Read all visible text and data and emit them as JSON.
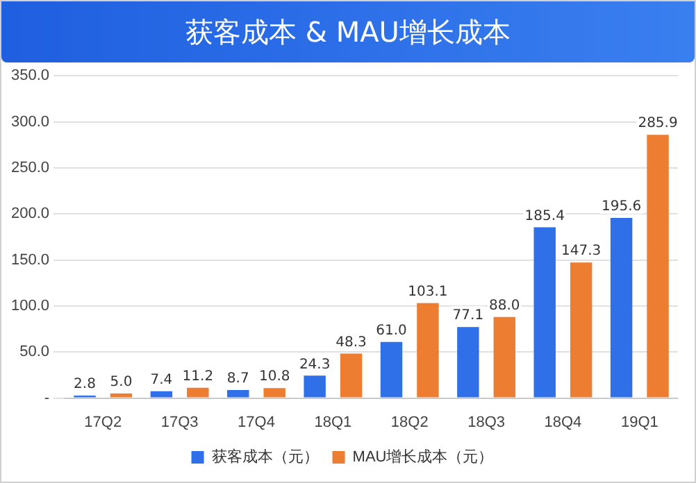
{
  "chart_data": {
    "type": "bar",
    "title": "获客成本 & MAU增长成本",
    "categories": [
      "17Q2",
      "17Q3",
      "17Q4",
      "18Q1",
      "18Q2",
      "18Q3",
      "18Q4",
      "19Q1"
    ],
    "series": [
      {
        "name": "获客成本（元）",
        "color": "#2f6fe8",
        "values": [
          2.8,
          7.4,
          8.7,
          24.3,
          61.0,
          77.1,
          185.4,
          195.6
        ],
        "value_labels": [
          "2.8",
          "7.4",
          "8.7",
          "24.3",
          "61.0",
          "77.1",
          "185.4",
          "195.6"
        ]
      },
      {
        "name": "MAU增长成本（元）",
        "color": "#ed7d31",
        "values": [
          5.0,
          11.2,
          10.8,
          48.3,
          103.1,
          88.0,
          147.3,
          285.9
        ],
        "value_labels": [
          "5.0",
          "11.2",
          "10.8",
          "48.3",
          "103.1",
          "88.0",
          "147.3",
          "285.9"
        ]
      }
    ],
    "ylim": [
      0,
      350
    ],
    "yticks": [
      {
        "value": 0,
        "label": "-"
      },
      {
        "value": 50,
        "label": "50.0"
      },
      {
        "value": 100,
        "label": "100.0"
      },
      {
        "value": 150,
        "label": "150.0"
      },
      {
        "value": 200,
        "label": "200.0"
      },
      {
        "value": 250,
        "label": "250.0"
      },
      {
        "value": 300,
        "label": "300.0"
      },
      {
        "value": 350,
        "label": "350.0"
      }
    ],
    "grid": "y",
    "legend": "bottom"
  }
}
